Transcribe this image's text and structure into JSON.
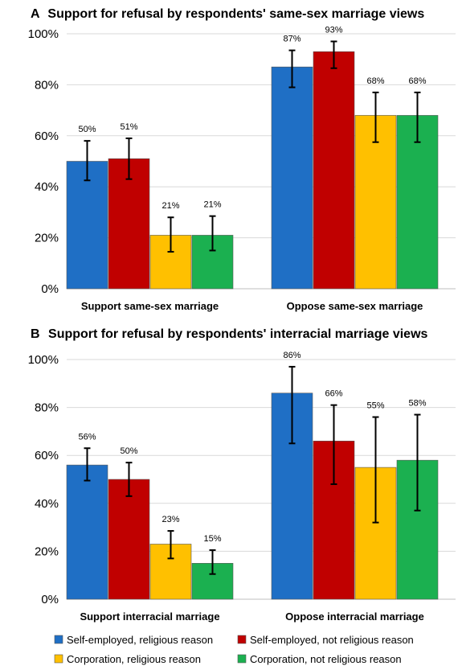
{
  "colors": {
    "self_religious": "#1f6fc5",
    "self_not_religious": "#c00000",
    "corp_religious": "#ffc000",
    "corp_not_religious": "#1bb050",
    "gridline": "#d9d9d9",
    "axis": "#bfbfbf"
  },
  "legend": [
    {
      "key": "self_religious",
      "label": "Self-employed, religious reason"
    },
    {
      "key": "self_not_religious",
      "label": "Self-employed, not religious reason"
    },
    {
      "key": "corp_religious",
      "label": "Corporation, religious reason"
    },
    {
      "key": "corp_not_religious",
      "label": "Corporation, not religious reason"
    }
  ],
  "chart_data": [
    {
      "type": "bar",
      "panel_letter": "A",
      "title": "Support for refusal by respondents' same-sex marriage views",
      "categories": [
        "Support same-sex marriage",
        "Oppose same-sex marriage"
      ],
      "ylim": [
        0,
        100
      ],
      "yticks": [
        "0%",
        "20%",
        "40%",
        "60%",
        "80%",
        "100%"
      ],
      "grid": true,
      "series": [
        {
          "name": "Self-employed, religious reason",
          "key": "self_religious",
          "values": [
            50,
            87
          ],
          "labels": [
            "50%",
            "87%"
          ],
          "err_low": [
            42.5,
            79
          ],
          "err_high": [
            58,
            93.5
          ]
        },
        {
          "name": "Self-employed, not religious reason",
          "key": "self_not_religious",
          "values": [
            51,
            93
          ],
          "labels": [
            "51%",
            "93%"
          ],
          "err_low": [
            43,
            86.5
          ],
          "err_high": [
            59,
            97
          ]
        },
        {
          "name": "Corporation, religious reason",
          "key": "corp_religious",
          "values": [
            21,
            68
          ],
          "labels": [
            "21%",
            "68%"
          ],
          "err_low": [
            14.5,
            57.5
          ],
          "err_high": [
            28,
            77
          ]
        },
        {
          "name": "Corporation, not religious reason",
          "key": "corp_not_religious",
          "values": [
            21,
            68
          ],
          "labels": [
            "21%",
            "68%"
          ],
          "err_low": [
            15,
            57.5
          ],
          "err_high": [
            28.5,
            77
          ]
        }
      ]
    },
    {
      "type": "bar",
      "panel_letter": "B",
      "title": "Support for refusal by respondents' interracial marriage views",
      "categories": [
        "Support interracial marriage",
        "Oppose interracial marriage"
      ],
      "ylim": [
        0,
        100
      ],
      "yticks": [
        "0%",
        "20%",
        "40%",
        "60%",
        "80%",
        "100%"
      ],
      "grid": true,
      "series": [
        {
          "name": "Self-employed, religious reason",
          "key": "self_religious",
          "values": [
            56,
            86
          ],
          "labels": [
            "56%",
            "86%"
          ],
          "err_low": [
            49.5,
            65
          ],
          "err_high": [
            63,
            97
          ]
        },
        {
          "name": "Self-employed, not religious reason",
          "key": "self_not_religious",
          "values": [
            50,
            66
          ],
          "labels": [
            "50%",
            "66%"
          ],
          "err_low": [
            43,
            48
          ],
          "err_high": [
            57,
            81
          ]
        },
        {
          "name": "Corporation, religious reason",
          "key": "corp_religious",
          "values": [
            23,
            55
          ],
          "labels": [
            "23%",
            "55%"
          ],
          "err_low": [
            17,
            32
          ],
          "err_high": [
            28.5,
            76
          ]
        },
        {
          "name": "Corporation, not religious reason",
          "key": "corp_not_religious",
          "values": [
            15,
            58
          ],
          "labels": [
            "15%",
            "58%"
          ],
          "err_low": [
            10.5,
            37
          ],
          "err_high": [
            20.5,
            77
          ]
        }
      ]
    }
  ]
}
